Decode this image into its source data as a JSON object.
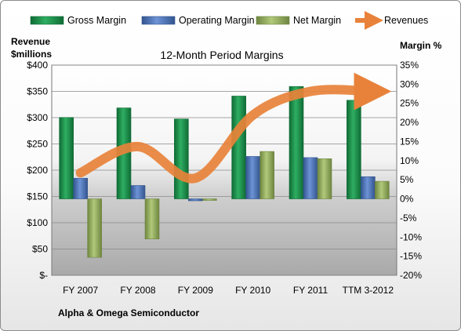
{
  "chart_data": {
    "type": "bar",
    "title": "12-Month Period Margins",
    "left_axis_label_line1": "Revenue",
    "left_axis_label_line2": "$millions",
    "right_axis_label": "Margin %",
    "footer": "Alpha & Omega Semiconductor",
    "categories": [
      "FY 2007",
      "FY 2008",
      "FY 2009",
      "FY 2010",
      "FY 2011",
      "TTM 3-2012"
    ],
    "left_axis": {
      "ticks": [
        0,
        50,
        100,
        150,
        200,
        250,
        300,
        350,
        400
      ],
      "tick_labels": [
        "$-",
        "$50",
        "$100",
        "$150",
        "$200",
        "$250",
        "$300",
        "$350",
        "$400"
      ],
      "ylim": [
        0,
        400
      ]
    },
    "right_axis": {
      "ticks": [
        -20,
        -15,
        -10,
        -5,
        0,
        5,
        10,
        15,
        20,
        25,
        30,
        35
      ],
      "tick_labels": [
        "-20%",
        "-15%",
        "-10%",
        "-5%",
        "0%",
        "5%",
        "10%",
        "15%",
        "20%",
        "25%",
        "30%",
        "35%"
      ],
      "ylim": [
        -20,
        35
      ]
    },
    "series": [
      {
        "name": "Gross Margin",
        "axis": "right",
        "kind": "bar",
        "color": "#1a8a4a",
        "values": [
          21.3,
          23.8,
          20.9,
          26.9,
          29.4,
          25.8
        ]
      },
      {
        "name": "Operating Margin",
        "axis": "right",
        "kind": "bar",
        "color": "#4a72b8",
        "values": [
          5.4,
          3.5,
          -0.5,
          11.1,
          10.8,
          5.8
        ]
      },
      {
        "name": "Net Margin",
        "axis": "right",
        "kind": "bar",
        "color": "#8fa85a",
        "values": [
          -15.3,
          -10.5,
          -0.4,
          12.4,
          10.5,
          4.6
        ]
      },
      {
        "name": "Revenues",
        "axis": "left",
        "kind": "line",
        "color": "#e8823a",
        "values": [
          195,
          245,
          185,
          305,
          350,
          350
        ]
      }
    ],
    "grid": true,
    "legend_position": "top"
  }
}
